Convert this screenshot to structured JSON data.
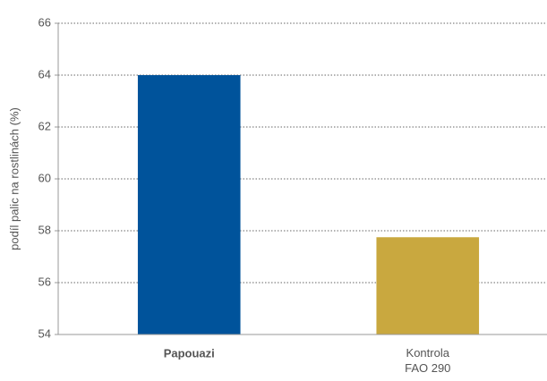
{
  "chart_data": {
    "type": "bar",
    "y_label": "podíl palic na rostlinách (%)",
    "categories": [
      "Papouazi",
      "Kontrola\nFAO 290"
    ],
    "values": [
      64.0,
      57.75
    ],
    "colors": [
      "#00539b",
      "#c9a83f"
    ],
    "ylim": [
      54,
      66
    ],
    "yticks": [
      54,
      56,
      58,
      60,
      62,
      64,
      66
    ],
    "grid": true
  }
}
